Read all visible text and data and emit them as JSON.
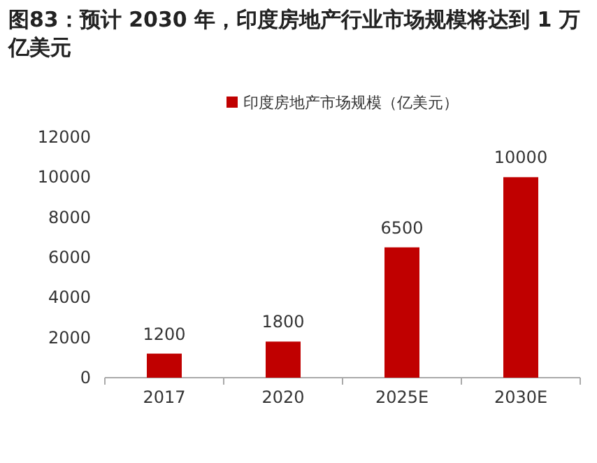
{
  "chart_data": {
    "type": "bar",
    "title": "图83：预计 2030 年，印度房地产行业市场规模将达到 1 万亿美元",
    "categories": [
      "2017",
      "2020",
      "2025E",
      "2030E"
    ],
    "series": [
      {
        "name": "印度房地产市场规模（亿美元）",
        "color": "#c00000",
        "values": [
          1200,
          1800,
          6500,
          10000
        ]
      }
    ],
    "ylim": [
      0,
      12000
    ],
    "yticks": [
      0,
      2000,
      4000,
      6000,
      8000,
      10000,
      12000
    ],
    "data_labels": true,
    "legend": "top"
  }
}
